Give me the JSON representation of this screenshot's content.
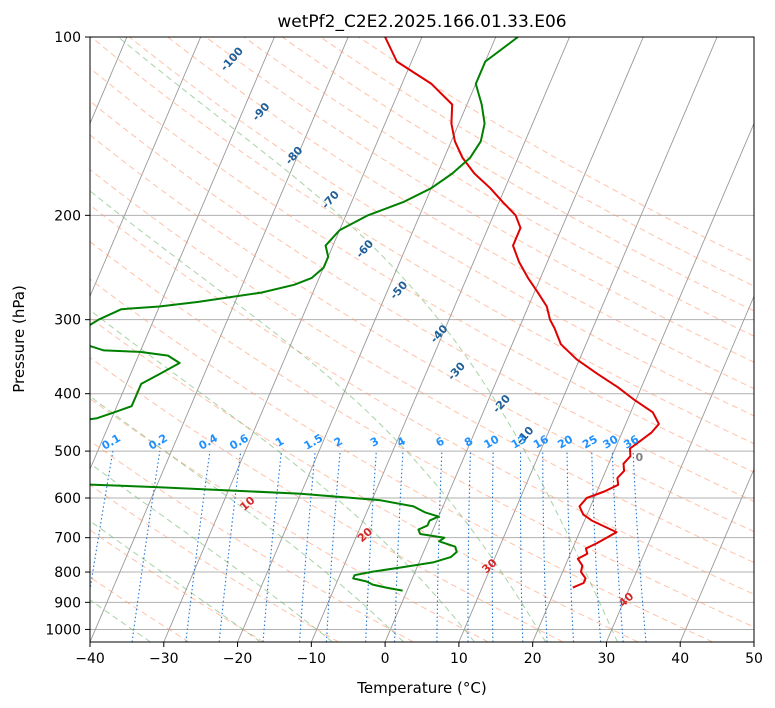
{
  "chart_data": {
    "type": "line",
    "diagram": "skew-T log-p",
    "title": "wetPf2_C2E2.2025.166.01.33.E06",
    "xlabel": "Temperature (°C)",
    "ylabel": "Pressure (hPa)",
    "xlim": [
      -40,
      50
    ],
    "ylim": [
      1050,
      100
    ],
    "y_scale": "log",
    "x_ticks": [
      -40,
      -30,
      -20,
      -10,
      0,
      10,
      20,
      30,
      40,
      50
    ],
    "y_ticks": [
      100,
      200,
      300,
      400,
      500,
      600,
      700,
      800,
      900,
      1000
    ],
    "grid": true,
    "colors": {
      "temperature": "#e00000",
      "dewpoint": "#008000",
      "isotherm": "#999999",
      "dry_adiabat": "#ff9970",
      "moist_adiabat": "#6ab56a",
      "mixing_ratio": "#1f77d4",
      "dry_adiabat_label": "#d62728",
      "mixing_ratio_label": "#1e90ff",
      "moist_adiabat_label": "#1f5f99",
      "lcl_label": "#808080"
    },
    "series": [
      {
        "key": "temperature",
        "pressure": [
          850,
          835,
          820,
          800,
          780,
          760,
          745,
          730,
          715,
          700,
          685,
          670,
          655,
          640,
          620,
          600,
          585,
          570,
          555,
          540,
          525,
          510,
          495,
          480,
          465,
          450,
          430,
          410,
          390,
          370,
          350,
          330,
          310,
          300,
          285,
          270,
          255,
          240,
          225,
          210,
          200,
          190,
          180,
          170,
          160,
          150,
          140,
          130,
          120,
          110,
          100
        ],
        "temp": [
          22.3,
          23.5,
          23.5,
          22.5,
          22.3,
          21.3,
          22.3,
          21.8,
          23.0,
          24.0,
          25.0,
          23.0,
          21.0,
          19.5,
          18.5,
          19.0,
          21.0,
          22.5,
          22.0,
          22.5,
          22.0,
          22.5,
          22.0,
          23.0,
          24.0,
          24.5,
          23.0,
          19.8,
          16.8,
          13.2,
          9.6,
          6.6,
          4.8,
          3.7,
          2.5,
          0.5,
          -1.7,
          -3.8,
          -5.6,
          -5.6,
          -7.0,
          -9.5,
          -12.0,
          -15.0,
          -17.5,
          -19.5,
          -21.0,
          -22.0,
          -26.0,
          -32.0,
          -35.0
        ]
      },
      {
        "key": "dewpoint",
        "pressure": [
          860,
          850,
          840,
          830,
          820,
          810,
          800,
          785,
          770,
          755,
          740,
          725,
          710,
          700,
          690,
          678,
          668,
          655,
          645,
          635,
          620,
          605,
          590,
          575,
          560,
          545,
          540,
          530,
          520,
          505,
          495,
          475,
          472,
          468,
          460,
          452,
          440,
          430,
          420,
          400,
          385,
          370,
          355,
          345,
          340,
          338,
          330,
          322,
          315,
          300,
          288,
          285,
          280,
          270,
          262,
          255,
          245,
          235,
          225,
          212,
          200,
          190,
          180,
          170,
          160,
          150,
          140,
          130,
          120,
          110,
          100
        ],
        "temp": [
          -0.6,
          -3.0,
          -5.0,
          -6.0,
          -8.0,
          -8.0,
          -6.0,
          -2.0,
          2.0,
          4.0,
          4.5,
          4.0,
          1.5,
          2.0,
          -1.5,
          -2.0,
          -1.0,
          -1.0,
          0.0,
          -2.0,
          -4.0,
          -9.0,
          -20.0,
          -40.0,
          -65.0,
          -83.0,
          -80.0,
          -70.0,
          -68.0,
          -70.0,
          -80.0,
          -92.0,
          -88.0,
          -70.0,
          -62.0,
          -58.0,
          -52.0,
          -50.0,
          -48.0,
          -48.0,
          -48.0,
          -46.0,
          -44.0,
          -46.0,
          -50.0,
          -55.0,
          -58.0,
          -60.0,
          -59.5,
          -57.5,
          -55.0,
          -50.0,
          -45.0,
          -37.0,
          -33.0,
          -31.0,
          -30.0,
          -30.0,
          -31.0,
          -30.0,
          -27.0,
          -23.0,
          -20.0,
          -18.0,
          -16.5,
          -16.0,
          -16.5,
          -18.0,
          -20.0,
          -20.0,
          -17.0
        ]
      }
    ],
    "isotherm_values": [
      -130,
      -120,
      -110,
      -100,
      -90,
      -80,
      -70,
      -60,
      -50,
      -40,
      -30,
      -20,
      -10,
      0,
      10,
      20,
      30,
      40,
      50
    ],
    "dry_adiabat_values": [
      -30,
      -20,
      -10,
      0,
      10,
      20,
      30,
      40,
      50,
      60,
      70,
      80,
      90,
      100,
      110,
      120,
      130,
      140,
      150,
      160,
      170,
      180
    ],
    "dry_adiabat_labels": [
      {
        "text": "10",
        "value": 10
      },
      {
        "text": "20",
        "value": 20
      },
      {
        "text": "30",
        "value": 30
      },
      {
        "text": "40",
        "value": 40
      }
    ],
    "moist_adiabat_values": [
      -35,
      -20,
      -10,
      0,
      10,
      20,
      30
    ],
    "moist_adiabat_labels": [
      {
        "text": "-100",
        "t": -54,
        "p": 110
      },
      {
        "text": "-90",
        "t": -47,
        "p": 135
      },
      {
        "text": "-80",
        "t": -40,
        "p": 160
      },
      {
        "text": "-70",
        "t": -32.5,
        "p": 190
      },
      {
        "text": "-60",
        "t": -25,
        "p": 230
      },
      {
        "text": "-50",
        "t": -18,
        "p": 270
      },
      {
        "text": "-40",
        "t": -10,
        "p": 320
      },
      {
        "text": "-30",
        "t": -5.5,
        "p": 370
      },
      {
        "text": "-20",
        "t": 2.5,
        "p": 420
      },
      {
        "text": "-10",
        "t": 7.5,
        "p": 475
      }
    ],
    "mixing_ratio_values": [
      0.1,
      0.2,
      0.4,
      0.6,
      1,
      1.5,
      2,
      3,
      4,
      6,
      8,
      10,
      13,
      16,
      20,
      25,
      30,
      36
    ],
    "mixing_ratio_labels": [
      "0.1",
      "0.2",
      "0.4",
      "0.6",
      "1",
      "1.5",
      "2",
      "3",
      "4",
      "6",
      "8",
      "10",
      "13",
      "16",
      "20",
      "25",
      "30",
      "36"
    ],
    "lcl_label": {
      "text": "0",
      "t": 24,
      "p": 520
    }
  }
}
